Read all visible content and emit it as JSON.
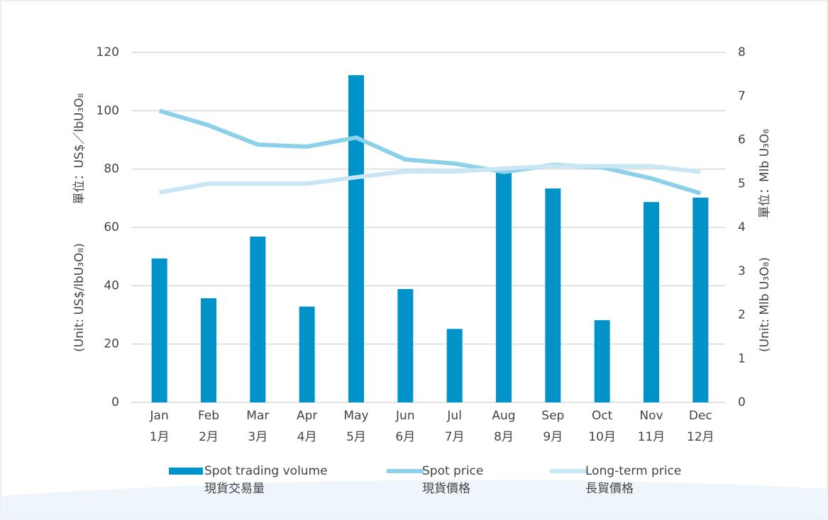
{
  "chart_data": {
    "type": "bar-line",
    "y_label": "(Unit: US$/lbU₃O₈)",
    "y_label_zh": "單位：US$／lbU₃O₈",
    "y2_label": "(Unit: Mlb U₃O₈)",
    "y2_label_zh": "單位：Mlb U₃O₈",
    "categories": [
      [
        "Jan",
        "1月"
      ],
      [
        "Feb",
        "2月"
      ],
      [
        "Mar",
        "3月"
      ],
      [
        "Apr",
        "4月"
      ],
      [
        "May",
        "5月"
      ],
      [
        "Jun",
        "6月"
      ],
      [
        "Jul",
        "7月"
      ],
      [
        "Aug",
        "8月"
      ],
      [
        "Sep",
        "9月"
      ],
      [
        "Oct",
        "10月"
      ],
      [
        "Nov",
        "11月"
      ],
      [
        "Dec",
        "12月"
      ]
    ],
    "series": [
      {
        "name": "Spot trading volume",
        "name_zh": "現貨交易量",
        "type": "bar",
        "axis": "y2",
        "color": "#0093c9",
        "values": [
          3.29,
          2.38,
          3.79,
          2.19,
          7.48,
          2.59,
          1.68,
          5.31,
          4.89,
          1.88,
          4.58,
          4.68
        ]
      },
      {
        "name": "Spot price",
        "name_zh": "現貨價格",
        "type": "line",
        "color": "#8dd0ea",
        "values": [
          100,
          95,
          88.4,
          87.7,
          90.8,
          83.3,
          81.9,
          79,
          81.4,
          80.6,
          76.8,
          71.7
        ]
      },
      {
        "name": "Long-term price",
        "name_zh": "長貿價格",
        "type": "line",
        "color": "#c8e6f3",
        "values": [
          72,
          75,
          75,
          75,
          77.2,
          79.2,
          79.2,
          80.2,
          81,
          81,
          81,
          79
        ]
      }
    ],
    "ylim": [
      0,
      120
    ],
    "yticks": [
      0,
      20,
      40,
      60,
      80,
      100,
      120
    ],
    "y2lim": [
      0,
      8
    ],
    "y2ticks": [
      0,
      1,
      2,
      3,
      4,
      5,
      6,
      7,
      8
    ],
    "grid": true
  }
}
